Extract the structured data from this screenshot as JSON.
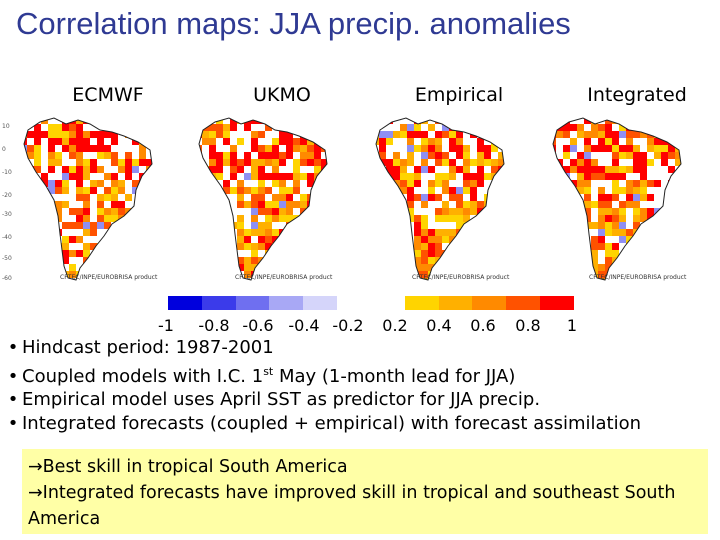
{
  "slide": {
    "title": "Correlation maps: JJA precip. anomalies"
  },
  "maps": [
    {
      "label": "ECMWF",
      "credit": "CPTEC/INPE/EUROBRISA product"
    },
    {
      "label": "UKMO",
      "credit": "CPTEC/INPE/EUROBRISA product"
    },
    {
      "label": "Empirical",
      "credit": "CPTEC/INPE/EUROBRISA product"
    },
    {
      "label": "Integrated",
      "credit": "CPTEC/INPE/EUROBRISA product"
    }
  ],
  "latitude_ticks": [
    "10",
    "0",
    "-10",
    "-20",
    "-30",
    "-40",
    "-50",
    "-60"
  ],
  "colorbar": {
    "colors": [
      "#0000dd",
      "#3b3bea",
      "#6f6ff0",
      "#a8a8f5",
      "#d5d5fa",
      "#ffffff",
      "#ffffff",
      "#ffd400",
      "#ffb000",
      "#ff8a00",
      "#ff5200",
      "#ff0000"
    ],
    "ticks": [
      "-1",
      "-0.8",
      "-0.6",
      "-0.4",
      "-0.2",
      "0.2",
      "0.4",
      "0.6",
      "0.8",
      "1"
    ]
  },
  "bullets": [
    {
      "text": "Hindcast period: 1987-2001"
    },
    {
      "text_before": "Coupled models with I.C. 1",
      "superscript": "st",
      "text_after": " May (1-month lead for JJA)"
    },
    {
      "text": "Empirical model uses April SST as predictor for JJA precip."
    },
    {
      "text": "Integrated forecasts (coupled + empirical) with forecast assimilation"
    }
  ],
  "bullet_symbol": "•",
  "arrow_symbol": "→",
  "conclusions": [
    "Best skill in tropical South America",
    "Integrated forecasts have improved skill in tropical and southeast South America"
  ]
}
